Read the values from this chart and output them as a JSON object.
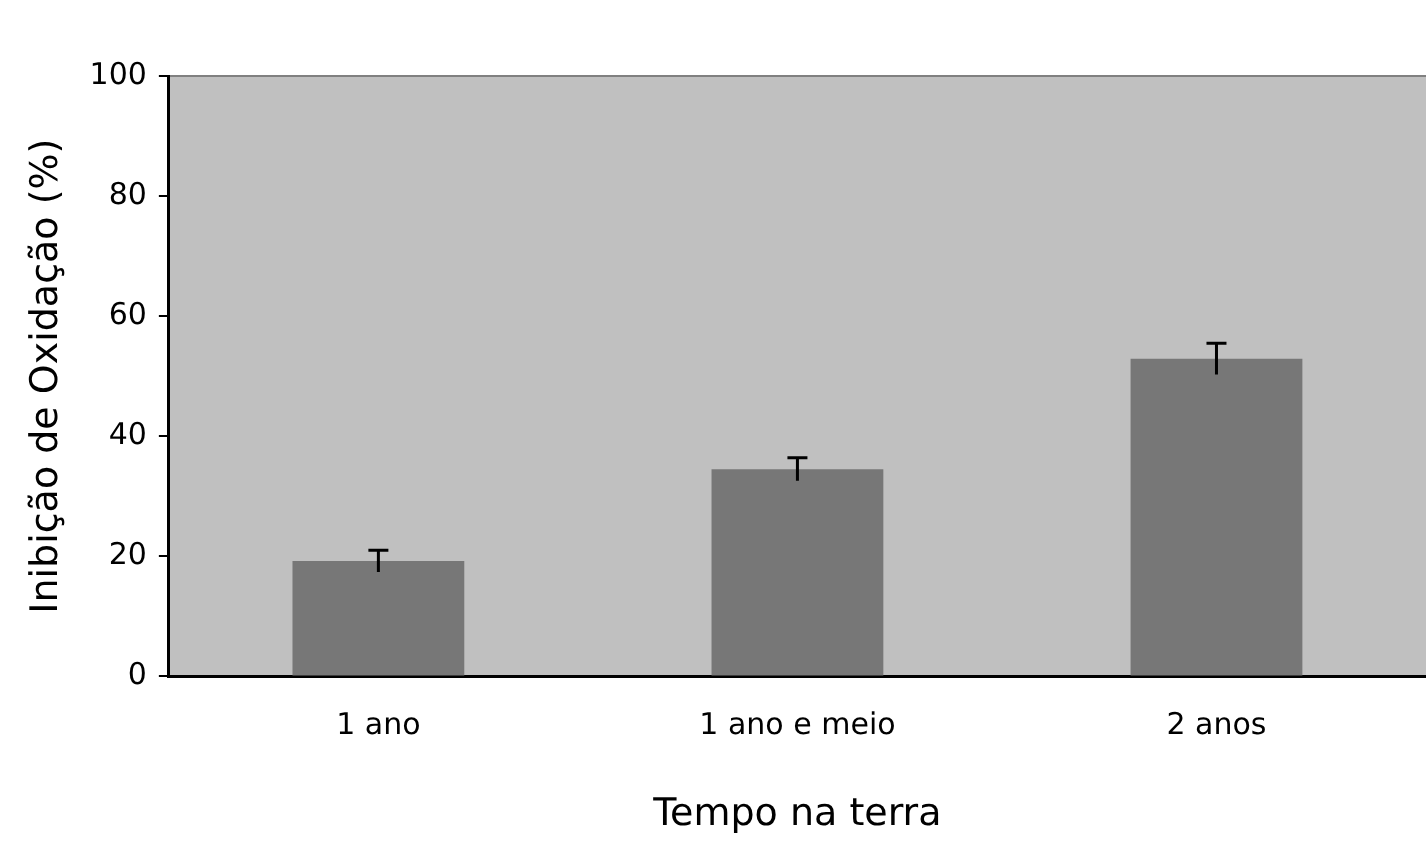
{
  "chart_data": {
    "type": "bar",
    "xlabel": "Tempo na terra",
    "ylabel": "Inibição de Oxidação (%)",
    "categories": [
      "1 ano",
      "1 ano e meio",
      "2 anos"
    ],
    "values": [
      19.2,
      34.5,
      52.9
    ],
    "errors": [
      1.8,
      1.9,
      2.6
    ],
    "color": "#777777",
    "ylim": [
      0,
      100
    ],
    "yticks": [
      0,
      20,
      40,
      60,
      80,
      100
    ],
    "grid": false,
    "legend": false
  }
}
